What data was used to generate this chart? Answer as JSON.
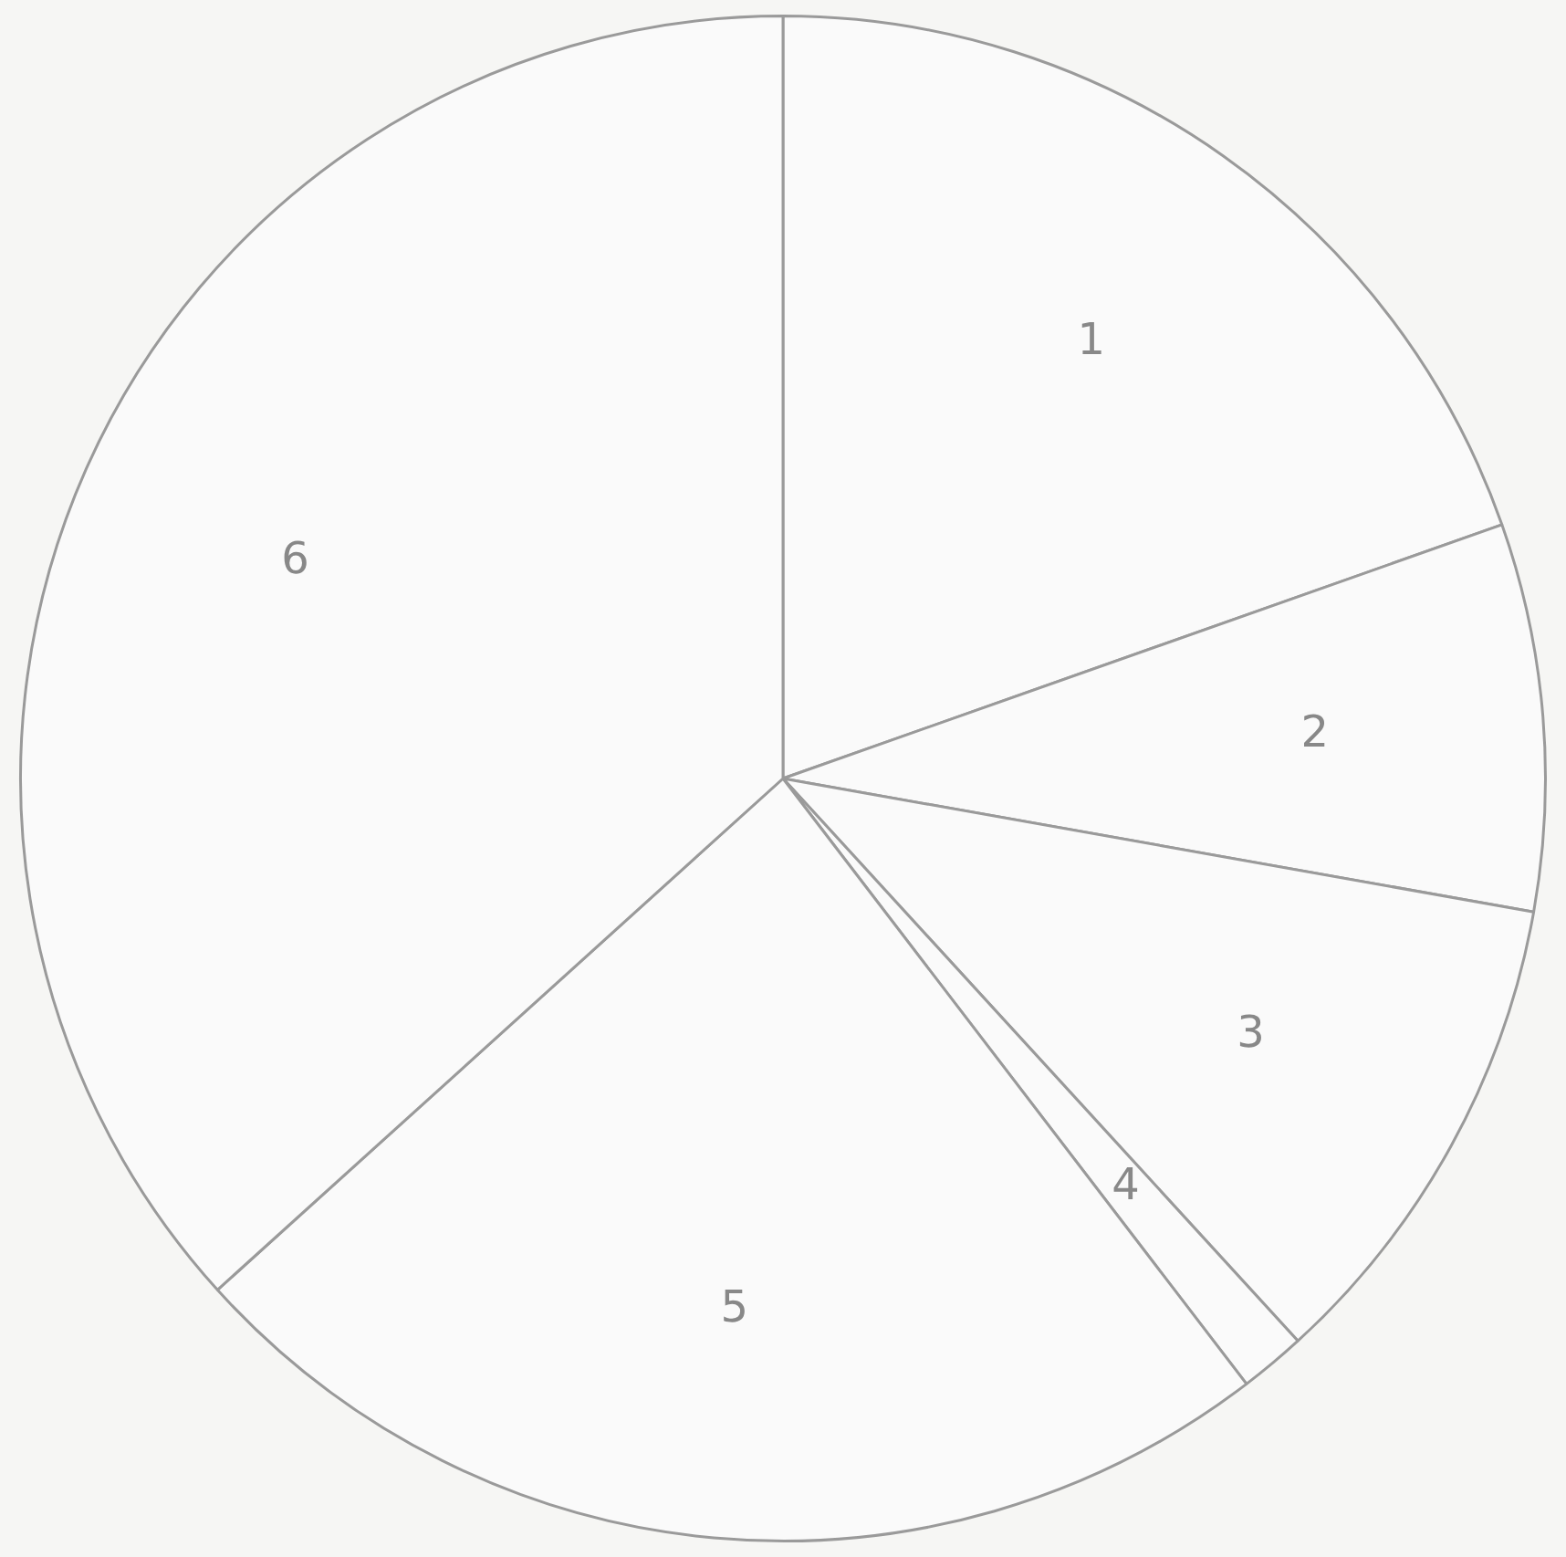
{
  "chart_data": {
    "type": "pie",
    "categories": [
      "1",
      "2",
      "3",
      "4",
      "5",
      "6"
    ],
    "values": [
      19.6,
      8.2,
      10.4,
      1.4,
      23.7,
      36.7
    ],
    "colors": [
      "#fafafa",
      "#fafafa",
      "#fafafa",
      "#fafafa",
      "#fafafa",
      "#fafafa"
    ]
  }
}
